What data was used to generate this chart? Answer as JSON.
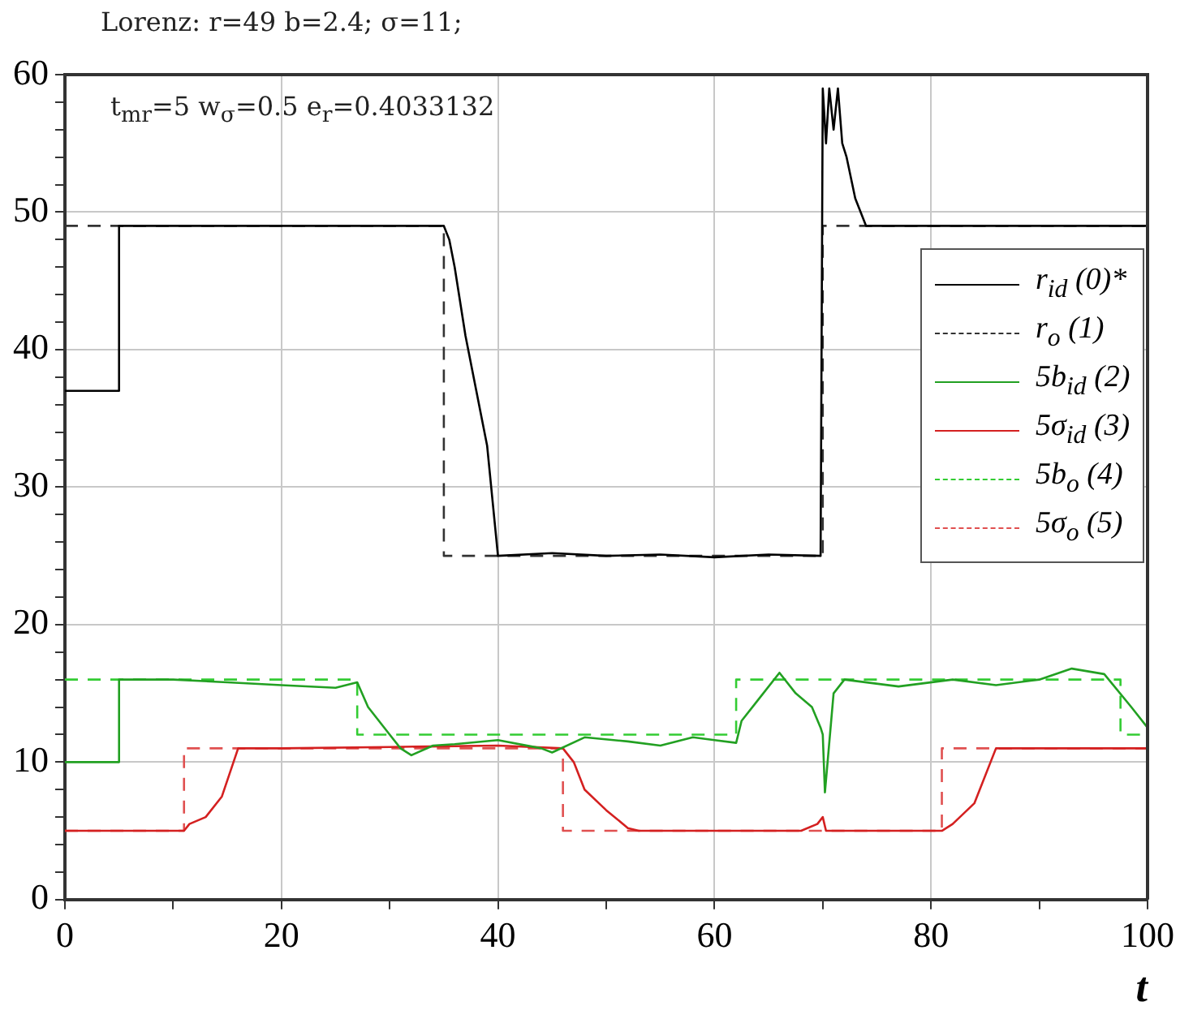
{
  "chart_data": {
    "type": "line",
    "title": "Lorenz: r=49 b=2.4; σ=11;",
    "xlabel": "t",
    "annotations": [
      "t$_{mr}$=5 w$_{σ}$=0.5 e$_{r}$=0.4033132"
    ],
    "xlim": [
      0,
      100
    ],
    "ylim": [
      0,
      60
    ],
    "xticks": [
      0,
      {
        "value": 10,
        "label": null
      },
      20,
      {
        "value": 30,
        "label": null
      },
      40,
      {
        "value": 50,
        "label": null
      },
      60,
      {
        "value": 70,
        "label": null
      },
      80,
      {
        "value": 90,
        "label": null
      },
      100
    ],
    "yticks": [
      0,
      {
        "value": 2,
        "label": null
      },
      {
        "value": 4,
        "label": null
      },
      {
        "value": 6,
        "label": null
      },
      {
        "value": 8,
        "label": null
      },
      10,
      {
        "value": 12,
        "label": null
      },
      {
        "value": 14,
        "label": null
      },
      {
        "value": 16,
        "label": null
      },
      {
        "value": 18,
        "label": null
      },
      20,
      {
        "value": 22,
        "label": null
      },
      {
        "value": 24,
        "label": null
      },
      {
        "value": 26,
        "label": null
      },
      {
        "value": 28,
        "label": null
      },
      30,
      {
        "value": 32,
        "label": null
      },
      {
        "value": 34,
        "label": null
      },
      {
        "value": 36,
        "label": null
      },
      {
        "value": 38,
        "label": null
      },
      40,
      {
        "value": 42,
        "label": null
      },
      {
        "value": 44,
        "label": null
      },
      {
        "value": 46,
        "label": null
      },
      {
        "value": 48,
        "label": null
      },
      50,
      {
        "value": 52,
        "label": null
      },
      {
        "value": 54,
        "label": null
      },
      {
        "value": 56,
        "label": null
      },
      {
        "value": 58,
        "label": null
      },
      60
    ],
    "grid": true,
    "legend": "right",
    "marker": "none",
    "series": [
      {
        "name": "r$_{id}$ (0)*",
        "color": "#000000",
        "line_style": "solid",
        "x": [
          0,
          5,
          5,
          20,
          35,
          35.5,
          36,
          37,
          38,
          39,
          40,
          45,
          50,
          55,
          60,
          65,
          69.8,
          70,
          70.3,
          70.6,
          71,
          71.4,
          71.8,
          72.2,
          73,
          74,
          80,
          90,
          100
        ],
        "values": [
          37,
          37,
          49,
          49,
          49,
          48,
          46,
          41,
          37,
          33,
          25,
          25.2,
          25,
          25.1,
          24.9,
          25.1,
          25,
          59,
          55,
          59,
          56,
          59,
          55,
          54,
          51,
          49,
          49,
          49,
          49
        ]
      },
      {
        "name": "r$_{o}$ (1)",
        "color": "#333333",
        "line_style": "dashed",
        "x": [
          0,
          35,
          35,
          70,
          70,
          100
        ],
        "values": [
          49,
          49,
          25,
          25,
          49,
          49
        ]
      },
      {
        "name": "5b$_{id}$ (2)",
        "color": "#22a022",
        "line_style": "solid",
        "x": [
          0,
          5,
          5,
          10,
          15,
          20,
          25,
          27,
          28,
          30,
          31,
          32,
          34,
          36,
          40,
          44,
          45,
          48,
          52,
          55,
          58,
          60,
          62,
          62.5,
          64,
          66,
          67.5,
          69,
          69.8,
          70,
          70.2,
          71,
          72,
          77,
          82,
          86,
          90,
          93,
          96,
          98.5,
          100
        ],
        "values": [
          10,
          10,
          16,
          16,
          15.8,
          15.6,
          15.4,
          15.8,
          14,
          12,
          11,
          10.5,
          11.2,
          11.3,
          11.6,
          11,
          10.7,
          11.8,
          11.5,
          11.2,
          11.8,
          11.6,
          11.4,
          13,
          14.5,
          16.5,
          15,
          14,
          12.5,
          12,
          7.8,
          15,
          16,
          15.5,
          16,
          15.6,
          16,
          16.8,
          16.4,
          14,
          12.5
        ]
      },
      {
        "name": "5σ$_{id}$ (3)",
        "color": "#d42020",
        "line_style": "solid",
        "x": [
          0,
          11,
          11.5,
          13,
          14.5,
          16,
          20,
          30,
          40,
          46,
          47,
          48,
          50,
          52,
          53,
          60,
          68,
          69.5,
          70,
          70.3,
          75,
          81,
          82,
          84,
          86,
          90,
          100
        ],
        "values": [
          5,
          5,
          5.5,
          6,
          7.5,
          11,
          11,
          11.1,
          11.2,
          11,
          10,
          8,
          6.5,
          5.2,
          5,
          5,
          5,
          5.5,
          6,
          5,
          5,
          5,
          5.5,
          7,
          11,
          11,
          11
        ]
      },
      {
        "name": "5b$_{o}$ (4)",
        "color": "#33cc33",
        "line_style": "dashed",
        "x": [
          0,
          27,
          27,
          62,
          62,
          97.5,
          97.5,
          100
        ],
        "values": [
          16,
          16,
          12,
          12,
          16,
          16,
          12,
          12
        ]
      },
      {
        "name": "5σ$_{o}$ (5)",
        "color": "#e05050",
        "line_style": "dashed",
        "x": [
          0,
          11,
          11,
          46,
          46,
          81,
          81,
          100
        ],
        "values": [
          5,
          5,
          11,
          11,
          5,
          5,
          11,
          11
        ]
      }
    ]
  }
}
